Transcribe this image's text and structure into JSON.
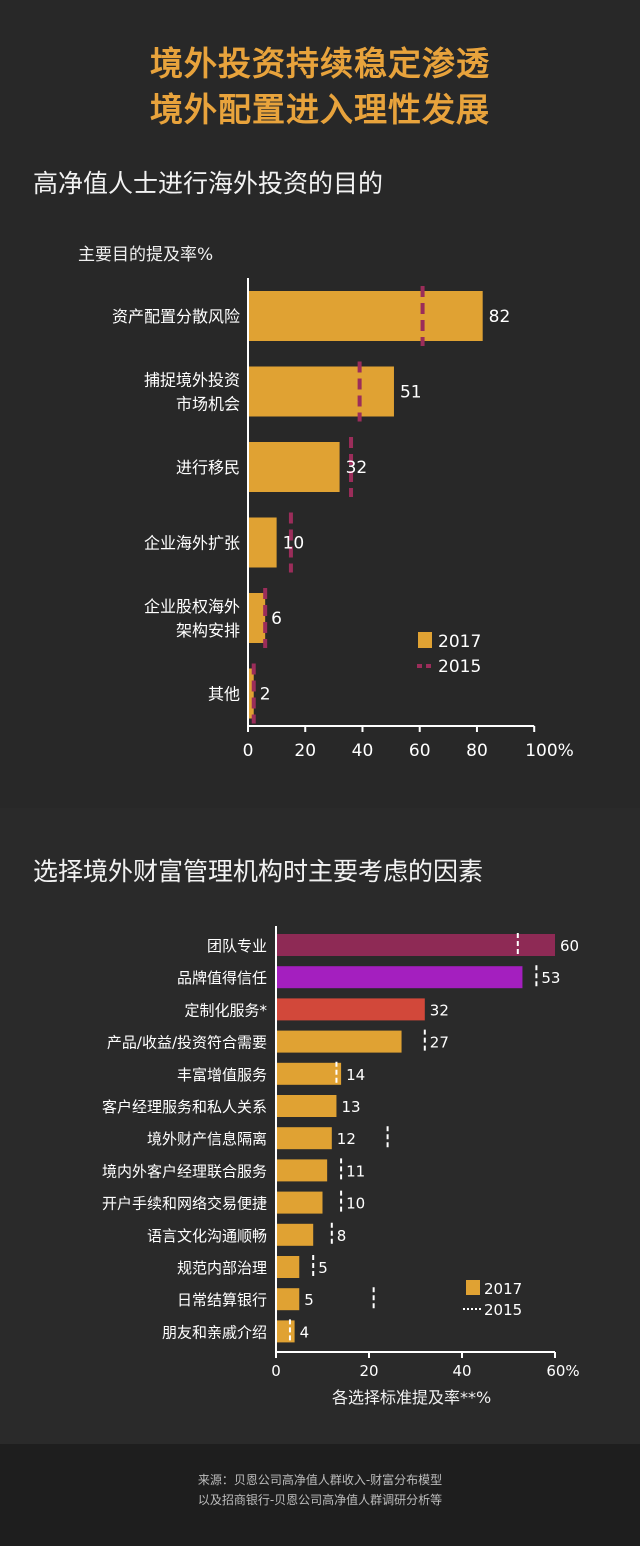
{
  "title_line1": "境外投资持续稳定渗透",
  "title_line2": "境外配置进入理性发展",
  "source_line1": "来源：贝恩公司高净值人群收入-财富分布模型",
  "source_line2": "以及招商银行-贝恩公司高净值人群调研分析等",
  "colors": {
    "accent": "#e8a33c",
    "bar_2017": "#e0a233",
    "marker_2015_chart1": "#9b2d5a",
    "marker_2015_chart2": "#ffffff",
    "team": "#8e2a55",
    "brand": "#a41fbf",
    "custom": "#d2483a"
  },
  "chart_data": [
    {
      "type": "bar",
      "orientation": "horizontal",
      "title": "高净值人士进行海外投资的目的",
      "subtitle": "主要目的提及率%",
      "categories": [
        "资产配置分散风险",
        "捕捉境外投资\n市场机会",
        "进行移民",
        "企业海外扩张",
        "企业股权海外\n架构安排",
        "其他"
      ],
      "series": [
        {
          "name": "2017",
          "values": [
            82,
            51,
            32,
            10,
            6,
            2
          ]
        },
        {
          "name": "2015",
          "values": [
            61,
            39,
            36,
            15,
            6,
            2
          ]
        }
      ],
      "xlim": [
        0,
        100
      ],
      "xticks": [
        "0",
        "20",
        "40",
        "60",
        "80",
        "100%"
      ],
      "legend_position": "bottom-right"
    },
    {
      "type": "bar",
      "orientation": "horizontal",
      "title": "选择境外财富管理机构时主要考虑的因素",
      "xlabel": "各选择标准提及率**%",
      "categories": [
        "团队专业",
        "品牌值得信任",
        "定制化服务*",
        "产品/收益/投资符合需要",
        "丰富增值服务",
        "客户经理服务和私人关系",
        "境外财产信息隔离",
        "境内外客户经理联合服务",
        "开户手续和网络交易便捷",
        "语言文化沟通顺畅",
        "规范内部治理",
        "日常结算银行",
        "朋友和亲戚介绍"
      ],
      "series": [
        {
          "name": "2017",
          "values": [
            60,
            53,
            32,
            27,
            14,
            13,
            12,
            11,
            10,
            8,
            5,
            5,
            4
          ]
        },
        {
          "name": "2015",
          "values": [
            52,
            56,
            null,
            32,
            13,
            null,
            24,
            14,
            14,
            12,
            8,
            21,
            3
          ]
        }
      ],
      "xlim": [
        0,
        60
      ],
      "xticks": [
        "0",
        "20",
        "40",
        "60%"
      ],
      "legend_position": "bottom-right"
    }
  ]
}
